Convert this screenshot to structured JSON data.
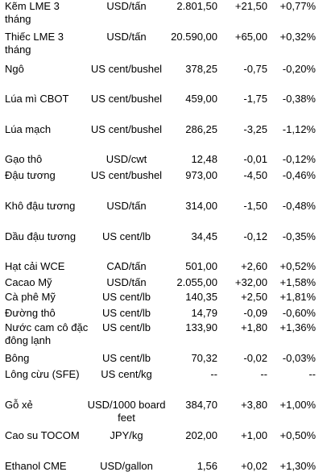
{
  "rows": [
    {
      "name": "Kẽm LME 3 tháng",
      "unit": "USD/tấn",
      "price": "2.801,50",
      "change": "+21,50",
      "pct": "+0,77%"
    },
    {
      "name": "Thiếc LME 3 tháng",
      "unit": "USD/tấn",
      "price": "20.590,00",
      "change": "+65,00",
      "pct": "+0,32%"
    },
    {
      "name": "Ngô",
      "unit": "US cent/bushel",
      "price": "378,25",
      "change": "-0,75",
      "pct": "-0,20%"
    },
    {
      "name": "Lúa mì CBOT",
      "unit": "US cent/bushel",
      "price": "459,00",
      "change": "-1,75",
      "pct": "-0,38%"
    },
    {
      "name": "Lúa mạch",
      "unit": "US cent/bushel",
      "price": "286,25",
      "change": "-3,25",
      "pct": "-1,12%"
    },
    {
      "name": "Gạo thô",
      "unit": "USD/cwt",
      "price": "12,48",
      "change": "-0,01",
      "pct": "-0,12%"
    },
    {
      "name": "Đậu tương",
      "unit": "US cent/bushel",
      "price": "973,00",
      "change": "-4,50",
      "pct": "-0,46%"
    },
    {
      "name": "Khô đậu tương",
      "unit": "USD/tấn",
      "price": "314,00",
      "change": "-1,50",
      "pct": "-0,48%"
    },
    {
      "name": "Dầu đậu tương",
      "unit": "US cent/lb",
      "price": "34,45",
      "change": "-0,12",
      "pct": "-0,35%"
    },
    {
      "name": "Hạt cải WCE",
      "unit": "CAD/tấn",
      "price": "501,00",
      "change": "+2,60",
      "pct": "+0,52%"
    },
    {
      "name": "Cacao Mỹ",
      "unit": "USD/tấn",
      "price": "2.055,00",
      "change": "+32,00",
      "pct": "+1,58%"
    },
    {
      "name": "Cà phê Mỹ",
      "unit": "US cent/lb",
      "price": "140,35",
      "change": "+2,50",
      "pct": "+1,81%"
    },
    {
      "name": "Đường thô",
      "unit": "US cent/lb",
      "price": "14,79",
      "change": "-0,09",
      "pct": "-0,60%"
    },
    {
      "name": "Nước cam cô đặc đông lạnh",
      "unit": "US cent/lb",
      "price": "133,90",
      "change": "+1,80",
      "pct": "+1,36%"
    },
    {
      "name": "Bông",
      "unit": "US cent/lb",
      "price": "70,32",
      "change": "-0,02",
      "pct": "-0,03%"
    },
    {
      "name": "Lông cừu (SFE)",
      "unit": "US cent/kg",
      "price": "--",
      "change": "--",
      "pct": "--"
    },
    {
      "name": "Gỗ xẻ",
      "unit": "USD/1000 board feet",
      "price": "384,70",
      "change": "+3,80",
      "pct": "+1,00%"
    },
    {
      "name": "Cao su TOCOM",
      "unit": "JPY/kg",
      "price": "202,00",
      "change": "+1,00",
      "pct": "+0,50%"
    },
    {
      "name": "Ethanol CME",
      "unit": "USD/gallon",
      "price": "1,56",
      "change": "+0,02",
      "pct": "+1,30%"
    }
  ]
}
